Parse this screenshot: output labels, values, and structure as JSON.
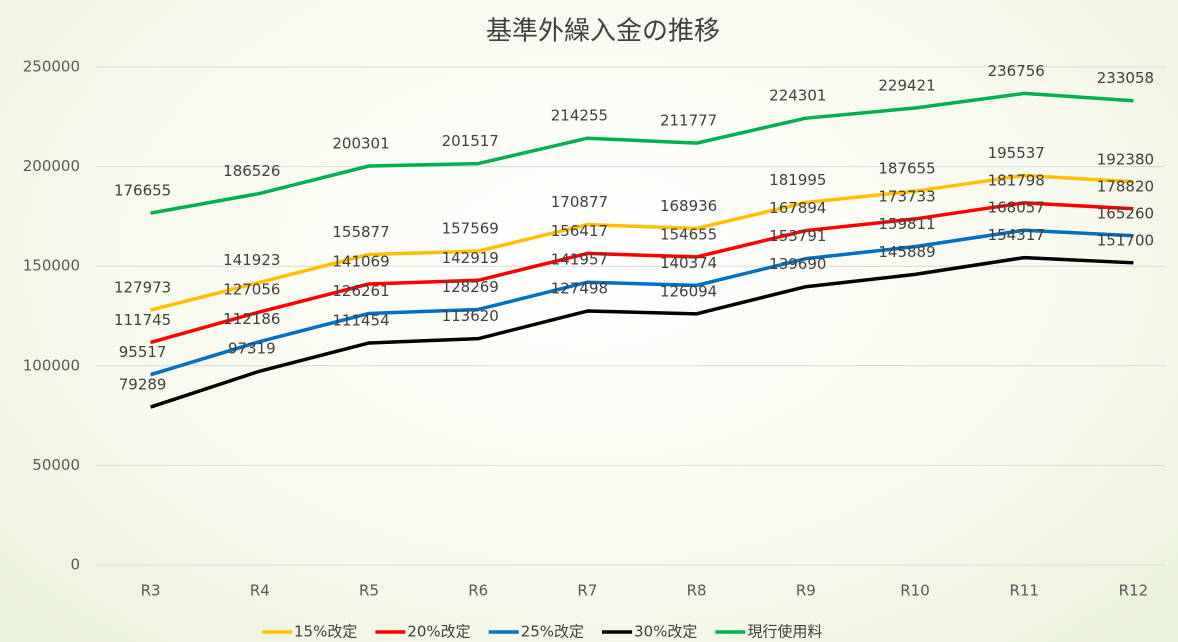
{
  "chart_data": {
    "type": "line",
    "title": "基準外繰入金の推移",
    "categories": [
      "R3",
      "R4",
      "R5",
      "R6",
      "R7",
      "R8",
      "R9",
      "R10",
      "R11",
      "R12"
    ],
    "series": [
      {
        "name": "15%改定",
        "color": "#ffc000",
        "values": [
          127973,
          141923,
          155877,
          157569,
          170877,
          168936,
          181995,
          187655,
          195537,
          192380
        ]
      },
      {
        "name": "20%改定",
        "color": "#ff0000",
        "values": [
          111745,
          127056,
          141069,
          142919,
          156417,
          154655,
          167894,
          173733,
          181798,
          178820
        ]
      },
      {
        "name": "25%改定",
        "color": "#0070c0",
        "values": [
          95517,
          112186,
          126261,
          128269,
          141957,
          140374,
          153791,
          159811,
          168057,
          165260
        ]
      },
      {
        "name": "30%改定",
        "color": "#000000",
        "values": [
          79289,
          97319,
          111454,
          113620,
          127498,
          126094,
          139690,
          145889,
          154317,
          151700
        ]
      },
      {
        "name": "現行使用料",
        "color": "#00b050",
        "values": [
          176655,
          186526,
          200301,
          201517,
          214255,
          211777,
          224301,
          229421,
          236756,
          233058
        ]
      }
    ],
    "ylim": [
      0,
      250000
    ],
    "yticks": [
      0,
      50000,
      100000,
      150000,
      200000,
      250000
    ],
    "grid": true,
    "legend": "bottom"
  }
}
